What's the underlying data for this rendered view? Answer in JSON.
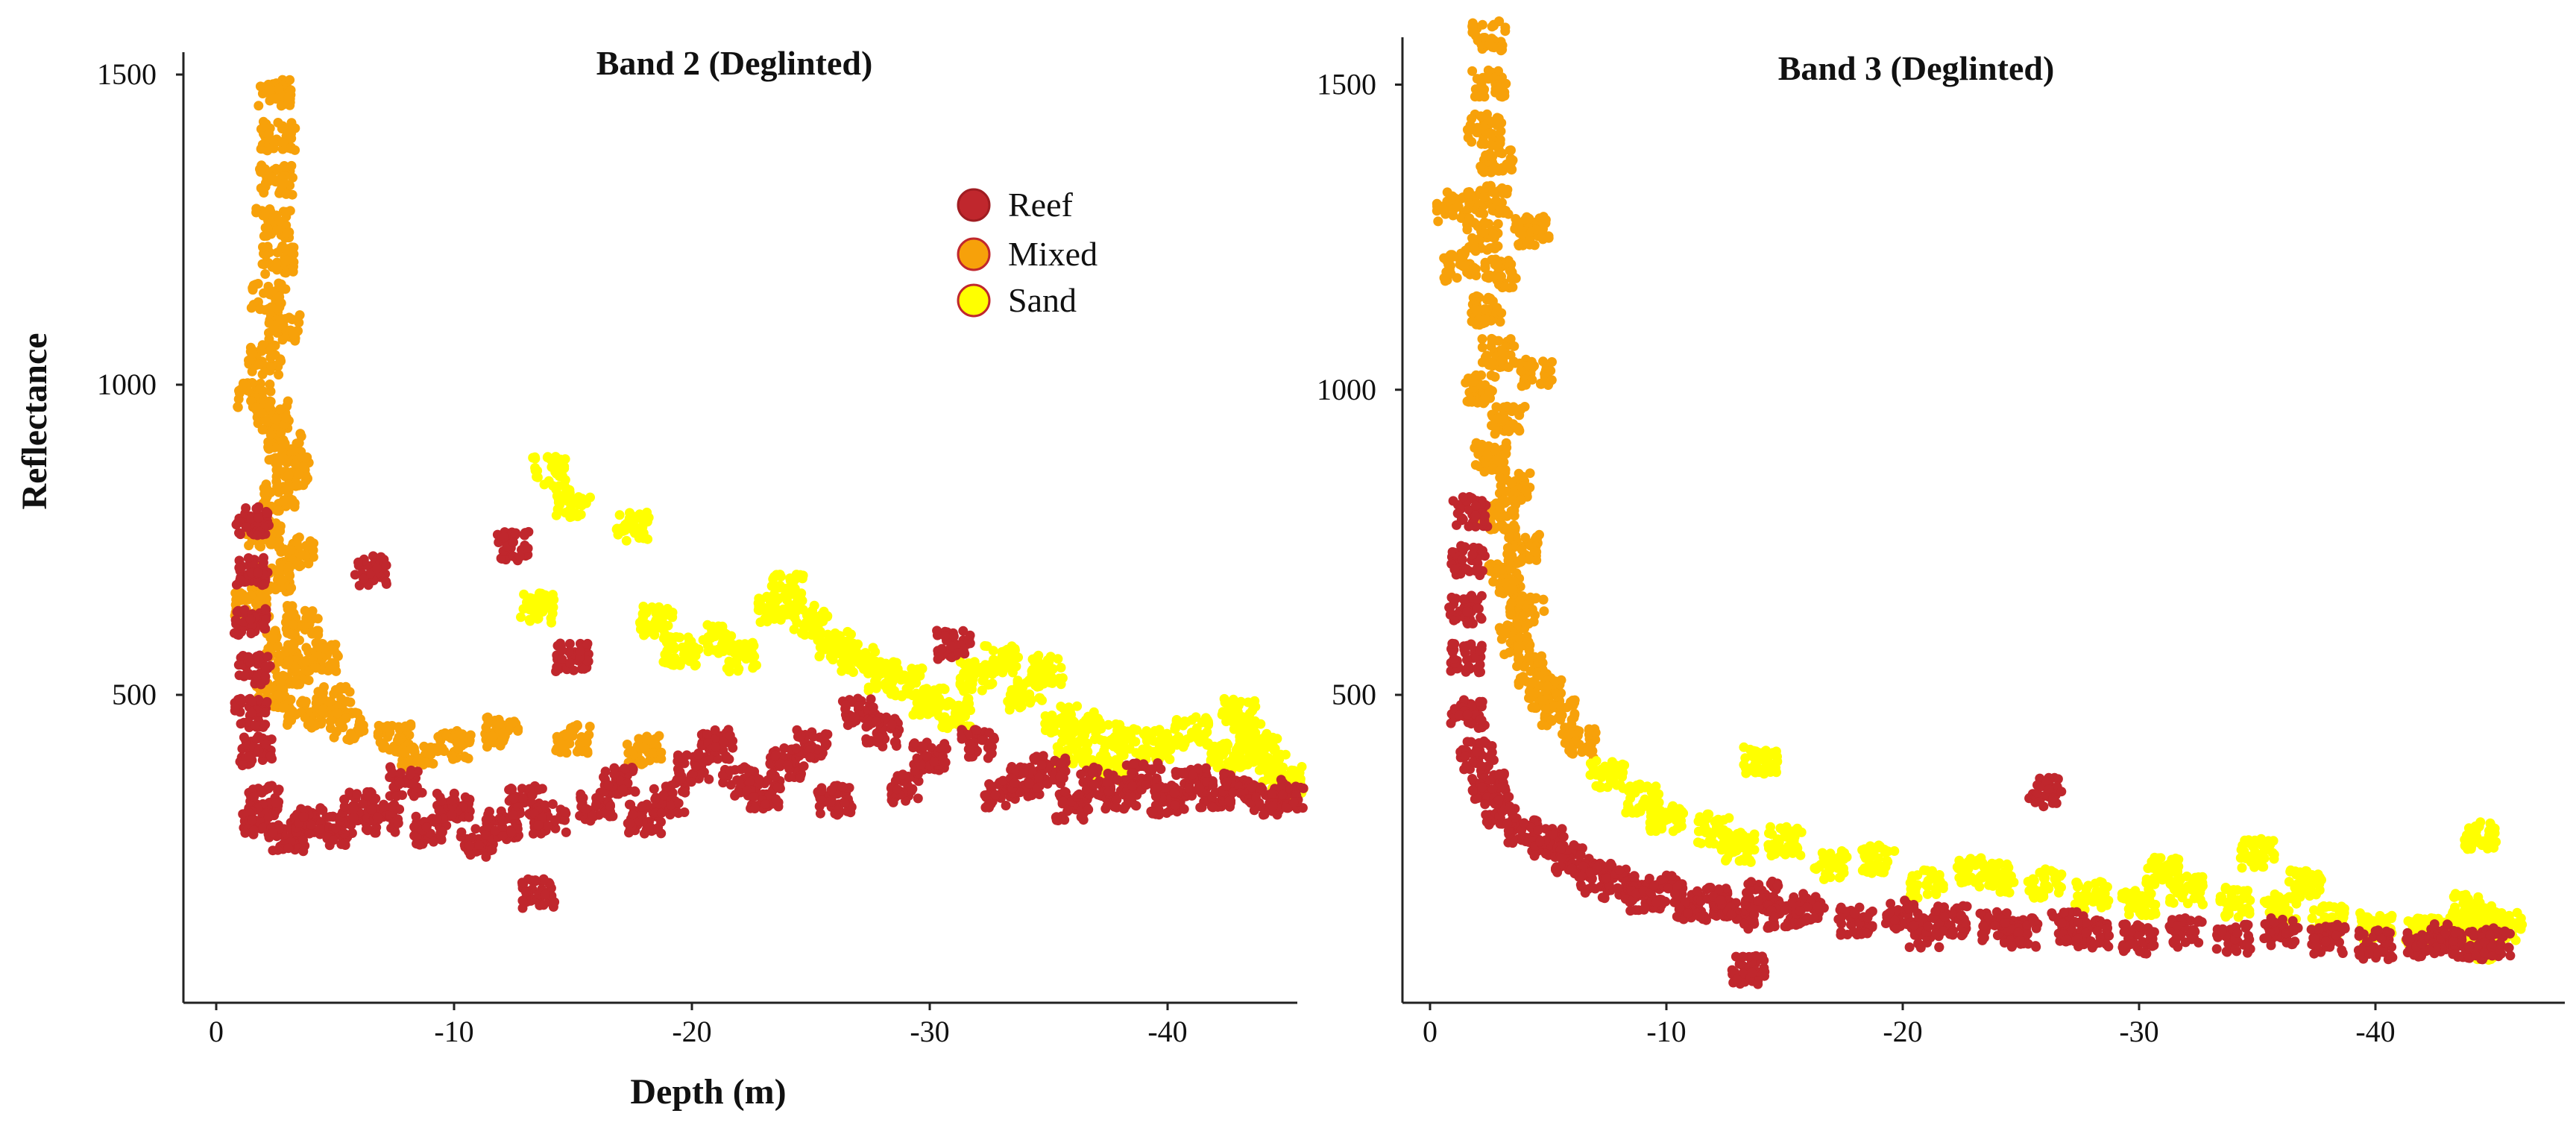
{
  "chart_data": [
    {
      "type": "scatter",
      "title": "Band 2 (Deglinted)",
      "xlabel": "Depth (m)",
      "ylabel": "Reflectance",
      "xlim": [
        2,
        -46
      ],
      "ylim": [
        0,
        1550
      ],
      "x_ticks": [
        0,
        -10,
        -20,
        -30,
        -40
      ],
      "x_tick_labels": [
        "0",
        "-10",
        "-20",
        "-30",
        "-40"
      ],
      "y_ticks": [
        500,
        1000,
        1500
      ],
      "y_tick_labels": [
        "500",
        "1000",
        "1500"
      ],
      "grid": false,
      "legend": {
        "position": "top-right",
        "entries": [
          {
            "label": "Reef",
            "color": "#c0272d",
            "stroke": "#a01d22"
          },
          {
            "label": "Mixed",
            "color": "#f7a10a",
            "stroke": "#c0272d"
          },
          {
            "label": "Sand",
            "color": "#ffff00",
            "stroke": "#c0272d"
          }
        ]
      },
      "series": [
        {
          "name": "Mixed",
          "color": "#f7a10a",
          "points": [
            [
              -2.5,
              1470
            ],
            [
              -2.6,
              1400
            ],
            [
              -2.5,
              1330
            ],
            [
              -2.4,
              1260
            ],
            [
              -2.6,
              1200
            ],
            [
              -2.2,
              1140
            ],
            [
              -2.8,
              1090
            ],
            [
              -1.6,
              980
            ],
            [
              -2.0,
              1040
            ],
            [
              -2.4,
              950
            ],
            [
              -2.9,
              900
            ],
            [
              -3.2,
              860
            ],
            [
              -2.7,
              820
            ],
            [
              -2.0,
              760
            ],
            [
              -3.4,
              730
            ],
            [
              -2.5,
              690
            ],
            [
              -1.5,
              650
            ],
            [
              -3.6,
              620
            ],
            [
              -2.8,
              580
            ],
            [
              -3.2,
              540
            ],
            [
              -2.3,
              500
            ],
            [
              -3.7,
              470
            ],
            [
              -4.5,
              560
            ],
            [
              -5.0,
              490
            ],
            [
              -5.5,
              450
            ],
            [
              -7.5,
              430
            ],
            [
              -10.0,
              420
            ],
            [
              -12.0,
              440
            ],
            [
              -8.5,
              400
            ],
            [
              -15.0,
              430
            ],
            [
              -18.0,
              410
            ]
          ]
        },
        {
          "name": "Sand",
          "color": "#ffff00",
          "points": [
            [
              -15.0,
              810
            ],
            [
              -17.5,
              770
            ],
            [
              -14.0,
              860
            ],
            [
              -13.5,
              640
            ],
            [
              -18.5,
              620
            ],
            [
              -19.5,
              570
            ],
            [
              -21.0,
              590
            ],
            [
              -22.0,
              560
            ],
            [
              -23.5,
              640
            ],
            [
              -24.0,
              670
            ],
            [
              -25.0,
              620
            ],
            [
              -26.0,
              580
            ],
            [
              -27.0,
              560
            ],
            [
              -28.0,
              530
            ],
            [
              -29.0,
              520
            ],
            [
              -30.0,
              490
            ],
            [
              -31.0,
              470
            ],
            [
              -32.0,
              530
            ],
            [
              -33.0,
              560
            ],
            [
              -34.0,
              500
            ],
            [
              -35.0,
              540
            ],
            [
              -35.5,
              460
            ],
            [
              -36.5,
              450
            ],
            [
              -38.0,
              430
            ],
            [
              -39.5,
              420
            ],
            [
              -41.0,
              440
            ],
            [
              -43.0,
              470
            ],
            [
              -43.5,
              430
            ],
            [
              -44.0,
              410
            ],
            [
              -44.5,
              380
            ],
            [
              -45.0,
              360
            ],
            [
              -42.5,
              400
            ],
            [
              -37.5,
              380
            ],
            [
              -36.0,
              410
            ]
          ]
        },
        {
          "name": "Reef",
          "color": "#c0272d",
          "points": [
            [
              -1.5,
              780
            ],
            [
              -1.5,
              700
            ],
            [
              -1.4,
              620
            ],
            [
              -1.6,
              540
            ],
            [
              -1.5,
              470
            ],
            [
              -1.7,
              410
            ],
            [
              -2.0,
              330
            ],
            [
              -1.8,
              290
            ],
            [
              -3.0,
              270
            ],
            [
              -4.0,
              300
            ],
            [
              -5.0,
              280
            ],
            [
              -6.0,
              320
            ],
            [
              -7.0,
              300
            ],
            [
              -8.0,
              360
            ],
            [
              -9.0,
              280
            ],
            [
              -10.0,
              320
            ],
            [
              -11.0,
              260
            ],
            [
              -12.0,
              290
            ],
            [
              -13.0,
              330
            ],
            [
              -13.5,
              180
            ],
            [
              -14.0,
              300
            ],
            [
              -15.0,
              560
            ],
            [
              -16.0,
              320
            ],
            [
              -17.0,
              360
            ],
            [
              -18.0,
              300
            ],
            [
              -19.0,
              330
            ],
            [
              -20.0,
              380
            ],
            [
              -21.0,
              420
            ],
            [
              -22.0,
              360
            ],
            [
              -23.0,
              340
            ],
            [
              -24.0,
              390
            ],
            [
              -25.0,
              420
            ],
            [
              -26.0,
              330
            ],
            [
              -27.0,
              470
            ],
            [
              -28.0,
              440
            ],
            [
              -29.0,
              350
            ],
            [
              -30.0,
              400
            ],
            [
              -31.0,
              580
            ],
            [
              -32.0,
              420
            ],
            [
              -33.0,
              340
            ],
            [
              -34.0,
              360
            ],
            [
              -35.0,
              380
            ],
            [
              -36.0,
              320
            ],
            [
              -37.0,
              360
            ],
            [
              -38.0,
              340
            ],
            [
              -39.0,
              370
            ],
            [
              -40.0,
              330
            ],
            [
              -41.0,
              360
            ],
            [
              -42.0,
              340
            ],
            [
              -43.0,
              350
            ],
            [
              -44.0,
              330
            ],
            [
              -45.0,
              340
            ],
            [
              -12.5,
              740
            ],
            [
              -6.5,
              700
            ]
          ]
        }
      ]
    },
    {
      "type": "scatter",
      "title": "Band 3 (Deglinted)",
      "xlabel": "",
      "ylabel": "",
      "xlim": [
        2,
        -47
      ],
      "ylim": [
        0,
        1600
      ],
      "x_ticks": [
        0,
        -10,
        -20,
        -30,
        -40
      ],
      "x_tick_labels": [
        "0",
        "-10",
        "-20",
        "-30",
        "-40"
      ],
      "y_ticks": [
        500,
        1000,
        1500
      ],
      "y_tick_labels": [
        "500",
        "1000",
        "1500"
      ],
      "grid": false,
      "series": [
        {
          "name": "Mixed",
          "color": "#f7a10a",
          "points": [
            [
              -2.5,
              1580
            ],
            [
              -2.5,
              1500
            ],
            [
              -2.3,
              1430
            ],
            [
              -2.8,
              1380
            ],
            [
              -2.6,
              1310
            ],
            [
              -2.2,
              1250
            ],
            [
              -3.0,
              1190
            ],
            [
              -2.4,
              1130
            ],
            [
              -2.9,
              1060
            ],
            [
              -2.1,
              1000
            ],
            [
              -3.3,
              950
            ],
            [
              -2.6,
              890
            ],
            [
              -3.6,
              840
            ],
            [
              -2.9,
              790
            ],
            [
              -3.9,
              740
            ],
            [
              -3.2,
              690
            ],
            [
              -4.1,
              640
            ],
            [
              -3.6,
              590
            ],
            [
              -4.4,
              540
            ],
            [
              -4.9,
              500
            ],
            [
              -5.4,
              470
            ],
            [
              -6.3,
              420
            ],
            [
              -1.3,
              1200
            ],
            [
              -1.0,
              1300
            ],
            [
              -4.3,
              1260
            ],
            [
              -4.5,
              1030
            ]
          ]
        },
        {
          "name": "Sand",
          "color": "#ffff00",
          "points": [
            [
              -7.5,
              370
            ],
            [
              -9.0,
              330
            ],
            [
              -10.0,
              300
            ],
            [
              -12.0,
              280
            ],
            [
              -13.0,
              250
            ],
            [
              -14.0,
              390
            ],
            [
              -15.0,
              260
            ],
            [
              -17.0,
              220
            ],
            [
              -19.0,
              230
            ],
            [
              -21.0,
              190
            ],
            [
              -23.0,
              210
            ],
            [
              -24.0,
              200
            ],
            [
              -26.0,
              190
            ],
            [
              -28.0,
              170
            ],
            [
              -30.0,
              160
            ],
            [
              -31.0,
              210
            ],
            [
              -32.0,
              180
            ],
            [
              -34.0,
              160
            ],
            [
              -35.0,
              240
            ],
            [
              -36.0,
              150
            ],
            [
              -38.0,
              130
            ],
            [
              -40.0,
              120
            ],
            [
              -42.0,
              110
            ],
            [
              -43.5,
              120
            ],
            [
              -44.0,
              150
            ],
            [
              -44.5,
              90
            ],
            [
              -45.0,
              130
            ],
            [
              -45.5,
              120
            ],
            [
              -44.5,
              270
            ],
            [
              -37.0,
              190
            ]
          ]
        },
        {
          "name": "Reef",
          "color": "#c0272d",
          "points": [
            [
              -1.7,
              800
            ],
            [
              -1.6,
              720
            ],
            [
              -1.5,
              640
            ],
            [
              -1.5,
              560
            ],
            [
              -1.6,
              470
            ],
            [
              -2.0,
              400
            ],
            [
              -2.5,
              350
            ],
            [
              -3.0,
              310
            ],
            [
              -4.0,
              280
            ],
            [
              -5.0,
              260
            ],
            [
              -6.0,
              230
            ],
            [
              -7.0,
              200
            ],
            [
              -8.0,
              190
            ],
            [
              -9.0,
              170
            ],
            [
              -10.0,
              180
            ],
            [
              -11.0,
              150
            ],
            [
              -12.0,
              160
            ],
            [
              -13.0,
              140
            ],
            [
              -13.5,
              50
            ],
            [
              -14.0,
              170
            ],
            [
              -15.0,
              140
            ],
            [
              -16.0,
              150
            ],
            [
              -18.0,
              130
            ],
            [
              -20.0,
              140
            ],
            [
              -21.0,
              110
            ],
            [
              -22.0,
              130
            ],
            [
              -24.0,
              120
            ],
            [
              -25.0,
              110
            ],
            [
              -26.0,
              340
            ],
            [
              -27.0,
              120
            ],
            [
              -28.0,
              110
            ],
            [
              -30.0,
              100
            ],
            [
              -32.0,
              110
            ],
            [
              -34.0,
              100
            ],
            [
              -36.0,
              110
            ],
            [
              -38.0,
              100
            ],
            [
              -40.0,
              90
            ],
            [
              -42.0,
              95
            ],
            [
              -43.0,
              100
            ],
            [
              -44.0,
              90
            ],
            [
              -45.0,
              95
            ]
          ]
        }
      ]
    }
  ]
}
